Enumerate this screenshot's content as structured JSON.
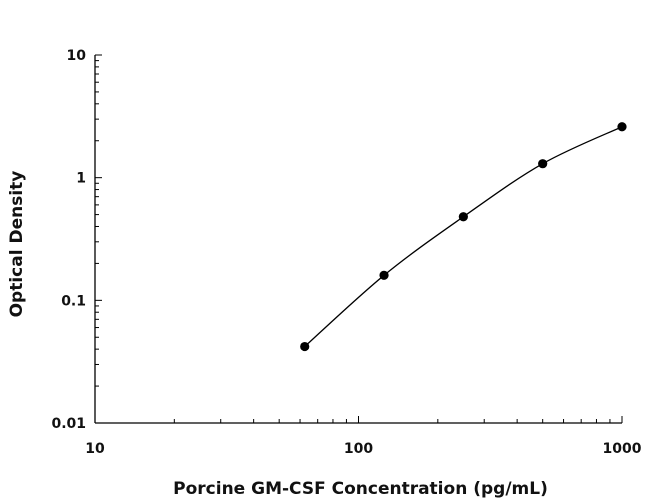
{
  "chart_data": {
    "type": "scatter",
    "title": "",
    "xlabel": "Porcine GM-CSF Concentration (pg/mL)",
    "ylabel": "Optical Density",
    "x_scale": "log",
    "y_scale": "log",
    "xlim": [
      10,
      1000
    ],
    "ylim": [
      0.01,
      10
    ],
    "x_tick_labels": [
      "10",
      "100",
      "1000"
    ],
    "y_tick_labels": [
      "0.01",
      "0.1",
      "1",
      "10"
    ],
    "grid": false,
    "legend": "none",
    "fit_curve": true,
    "series": [
      {
        "x": [
          62.5,
          125,
          250,
          500,
          1000
        ],
        "y": [
          0.042,
          0.16,
          0.48,
          1.3,
          2.6
        ]
      }
    ]
  }
}
